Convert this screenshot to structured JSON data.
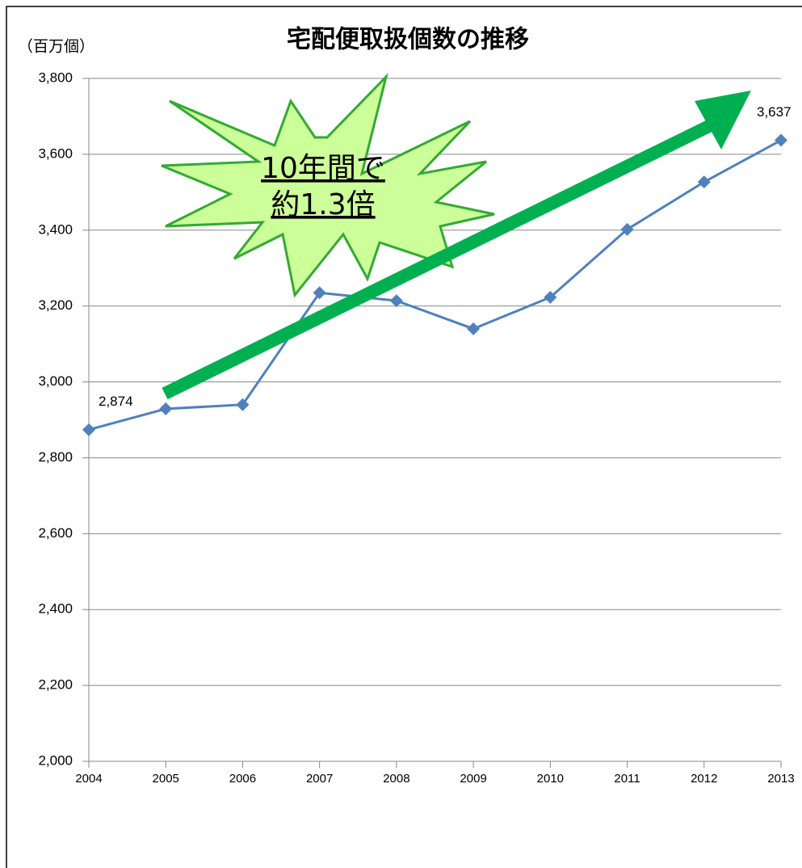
{
  "chart_data": {
    "type": "line",
    "title": "宅配便取扱個数の推移",
    "y_axis_label": "（百万個）",
    "categories": [
      "2004",
      "2005",
      "2006",
      "2007",
      "2008",
      "2009",
      "2010",
      "2011",
      "2012",
      "2013"
    ],
    "series": [
      {
        "name": "宅配便取扱個数",
        "color": "#4f81bd",
        "values": [
          2874,
          2929,
          2940,
          3235,
          3214,
          3140,
          3223,
          3402,
          3527,
          3637
        ],
        "value_labels": [
          "2,874",
          null,
          null,
          null,
          null,
          null,
          null,
          null,
          null,
          "3,637"
        ]
      }
    ],
    "ylim": [
      2000,
      3800
    ],
    "yticks": [
      {
        "value": 2000,
        "label": "2,000"
      },
      {
        "value": 2200,
        "label": "2,200"
      },
      {
        "value": 2400,
        "label": "2,400"
      },
      {
        "value": 2600,
        "label": "2,600"
      },
      {
        "value": 2800,
        "label": "2,800"
      },
      {
        "value": 3000,
        "label": "3,000"
      },
      {
        "value": 3200,
        "label": "3,200"
      },
      {
        "value": 3400,
        "label": "3,400"
      },
      {
        "value": 3600,
        "label": "3,600"
      },
      {
        "value": 3800,
        "label": "3,800"
      }
    ],
    "grid": true,
    "annotation": [
      "10年間で",
      "約1.3倍"
    ]
  }
}
